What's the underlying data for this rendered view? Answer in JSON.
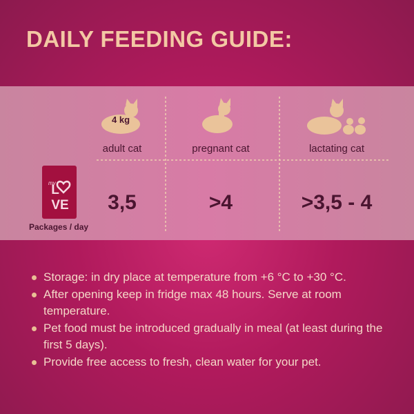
{
  "title": "DAILY FEEDING GUIDE:",
  "table": {
    "weight": "4 kg",
    "columns": [
      "adult cat",
      "pregnant cat",
      "lactating cat"
    ],
    "values": [
      "3,5",
      ">4",
      ">3,5 - 4"
    ],
    "row_label": "Packages / day",
    "logo": {
      "small": "my",
      "top": "L",
      "bottom": "VE"
    }
  },
  "notes": [
    "Storage: in dry place at temperature from +6 °C to +30 °C.",
    "After opening keep in fridge max 48 hours. Serve at room temperature.",
    "Pet food must be introduced gradually in meal (at least during the first 5 days).",
    "Provide free access to fresh, clean water for your pet."
  ]
}
